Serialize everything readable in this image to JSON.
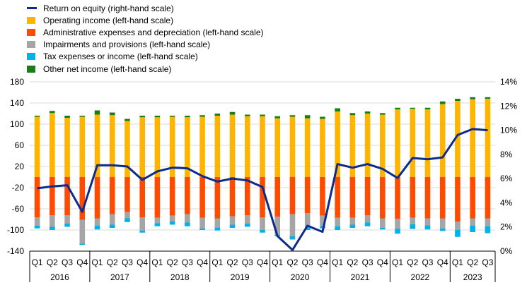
{
  "colors": {
    "return_on_equity": "#0d2b8c",
    "operating_income": "#ffb400",
    "administrative_expenses": "#ff4b00",
    "impairments": "#a5a5a5",
    "tax": "#00b1ea",
    "other_net_income": "#1a7d1a",
    "gridline": "#d9d9d9"
  },
  "legend": [
    {
      "key": "return_on_equity",
      "label": "Return on equity (right-hand scale)",
      "type": "line"
    },
    {
      "key": "operating_income",
      "label": "Operating income (left-hand scale)",
      "type": "bar"
    },
    {
      "key": "administrative_expenses",
      "label": "Administrative expenses and depreciation (left-hand scale)",
      "type": "bar"
    },
    {
      "key": "impairments",
      "label": "Impairments and provisions (left-hand scale)",
      "type": "bar"
    },
    {
      "key": "tax",
      "label": "Tax expenses or income (left-hand scale)",
      "type": "bar"
    },
    {
      "key": "other_net_income",
      "label": "Other net income (left-hand scale)",
      "type": "bar"
    }
  ],
  "chart_data": {
    "type": "bar",
    "title": "",
    "xlabel": "",
    "ylabel": "",
    "ylim": [
      -140,
      180
    ],
    "y_ticks": [
      -140,
      -100,
      -60,
      -20,
      20,
      60,
      100,
      140,
      180
    ],
    "y2lim": [
      0,
      14
    ],
    "y2_ticks": [
      "0%",
      "2%",
      "4%",
      "6%",
      "8%",
      "10%",
      "12%",
      "14%"
    ],
    "grid": true,
    "legend_position": "top-left",
    "categories": [
      "Q1",
      "Q2",
      "Q3",
      "Q4",
      "Q1",
      "Q2",
      "Q3",
      "Q4",
      "Q1",
      "Q2",
      "Q3",
      "Q4",
      "Q1",
      "Q2",
      "Q3",
      "Q4",
      "Q1",
      "Q2",
      "Q3",
      "Q4",
      "Q1",
      "Q2",
      "Q3",
      "Q4",
      "Q1",
      "Q2",
      "Q3",
      "Q4",
      "Q1",
      "Q2",
      "Q3"
    ],
    "quarter_labels": [
      "Q1",
      "Q2",
      "Q3",
      "Q4",
      "Q1",
      "Q2",
      "Q3",
      "Q4",
      "Q1",
      "Q2",
      "Q3",
      "Q4",
      "Q1",
      "Q2",
      "Q3",
      "Q4",
      "Q1",
      "Q2",
      "Q3",
      "Q4",
      "Q1",
      "Q2",
      "Q3",
      "Q4",
      "Q1",
      "Q2",
      "Q3",
      "Q4",
      "Q1",
      "Q2",
      "Q3"
    ],
    "years": [
      {
        "label": "2016",
        "quarters": 4
      },
      {
        "label": "2017",
        "quarters": 4
      },
      {
        "label": "2018",
        "quarters": 4
      },
      {
        "label": "2019",
        "quarters": 4
      },
      {
        "label": "2020",
        "quarters": 4
      },
      {
        "label": "2021",
        "quarters": 4
      },
      {
        "label": "2022",
        "quarters": 4
      },
      {
        "label": "2023",
        "quarters": 3
      }
    ],
    "series": [
      {
        "name": "Operating income (left-hand scale)",
        "key": "operating_income",
        "kind": "bar",
        "values": [
          114,
          121,
          112,
          114,
          118,
          117,
          106,
          113,
          113,
          114,
          113,
          114,
          116,
          118,
          115,
          115,
          111,
          114,
          111,
          110,
          124,
          117,
          120,
          118,
          128,
          129,
          128,
          138,
          144,
          147,
          148
        ]
      },
      {
        "name": "Other net income (left-hand scale)",
        "key": "other_net_income",
        "kind": "bar",
        "values": [
          2,
          4,
          4,
          2,
          8,
          5,
          4,
          3,
          3,
          2,
          3,
          3,
          4,
          5,
          3,
          3,
          4,
          3,
          6,
          4,
          6,
          4,
          4,
          3,
          3,
          2,
          3,
          5,
          4,
          4,
          3
        ]
      },
      {
        "name": "Administrative expenses and depreciation (left-hand scale)",
        "key": "administrative_expenses",
        "kind": "bar",
        "values": [
          -76,
          -72,
          -72,
          -81,
          -78,
          -70,
          -66,
          -76,
          -77,
          -73,
          -70,
          -77,
          -78,
          -74,
          -72,
          -76,
          -75,
          -70,
          -68,
          -73,
          -77,
          -77,
          -72,
          -78,
          -79,
          -77,
          -78,
          -78,
          -84,
          -78,
          -78
        ]
      },
      {
        "name": "Impairments and provisions (left-hand scale)",
        "key": "impairments",
        "kind": "bar",
        "values": [
          -16,
          -22,
          -16,
          -45,
          -14,
          -20,
          -12,
          -25,
          -10,
          -11,
          -16,
          -20,
          -18,
          -16,
          -16,
          -24,
          -34,
          -42,
          -28,
          -20,
          -16,
          -13,
          -14,
          -18,
          -19,
          -12,
          -13,
          -19,
          -16,
          -14,
          -15
        ]
      },
      {
        "name": "Tax expenses or income (left-hand scale)",
        "key": "tax",
        "kind": "bar",
        "values": [
          -5,
          -6,
          -6,
          -2,
          -7,
          -6,
          -7,
          -4,
          -6,
          -6,
          -7,
          -3,
          -5,
          -6,
          -6,
          -5,
          -3,
          -6,
          -4,
          -4,
          -7,
          -6,
          -7,
          -3,
          -9,
          -9,
          -8,
          -5,
          -13,
          -12,
          -13
        ]
      },
      {
        "name": "Return on equity (right-hand scale)",
        "key": "return_on_equity",
        "kind": "line",
        "axis": "right",
        "unit": "%",
        "values": [
          5.2,
          5.35,
          5.45,
          3.25,
          7.1,
          7.1,
          7.0,
          5.9,
          6.6,
          6.9,
          6.85,
          6.2,
          5.75,
          6.0,
          5.85,
          5.3,
          1.25,
          0.1,
          2.1,
          1.6,
          7.2,
          6.9,
          7.2,
          6.8,
          6.05,
          7.7,
          7.6,
          7.75,
          9.6,
          10.1,
          10.0
        ]
      }
    ]
  }
}
